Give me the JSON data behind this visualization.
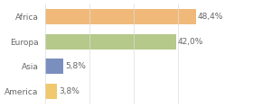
{
  "categories": [
    "America",
    "Asia",
    "Europa",
    "Africa"
  ],
  "values": [
    3.8,
    5.8,
    42.0,
    48.4
  ],
  "labels": [
    "3,8%",
    "5,8%",
    "42,0%",
    "48,4%"
  ],
  "bar_colors": [
    "#f0c96e",
    "#7b8fbf",
    "#b5c98a",
    "#f0b97a"
  ],
  "background_color": "#ffffff",
  "xlim": [
    0,
    57
  ],
  "label_fontsize": 6.5,
  "category_fontsize": 6.5,
  "bar_height": 0.62,
  "grid_color": "#dddddd",
  "text_color": "#666666"
}
